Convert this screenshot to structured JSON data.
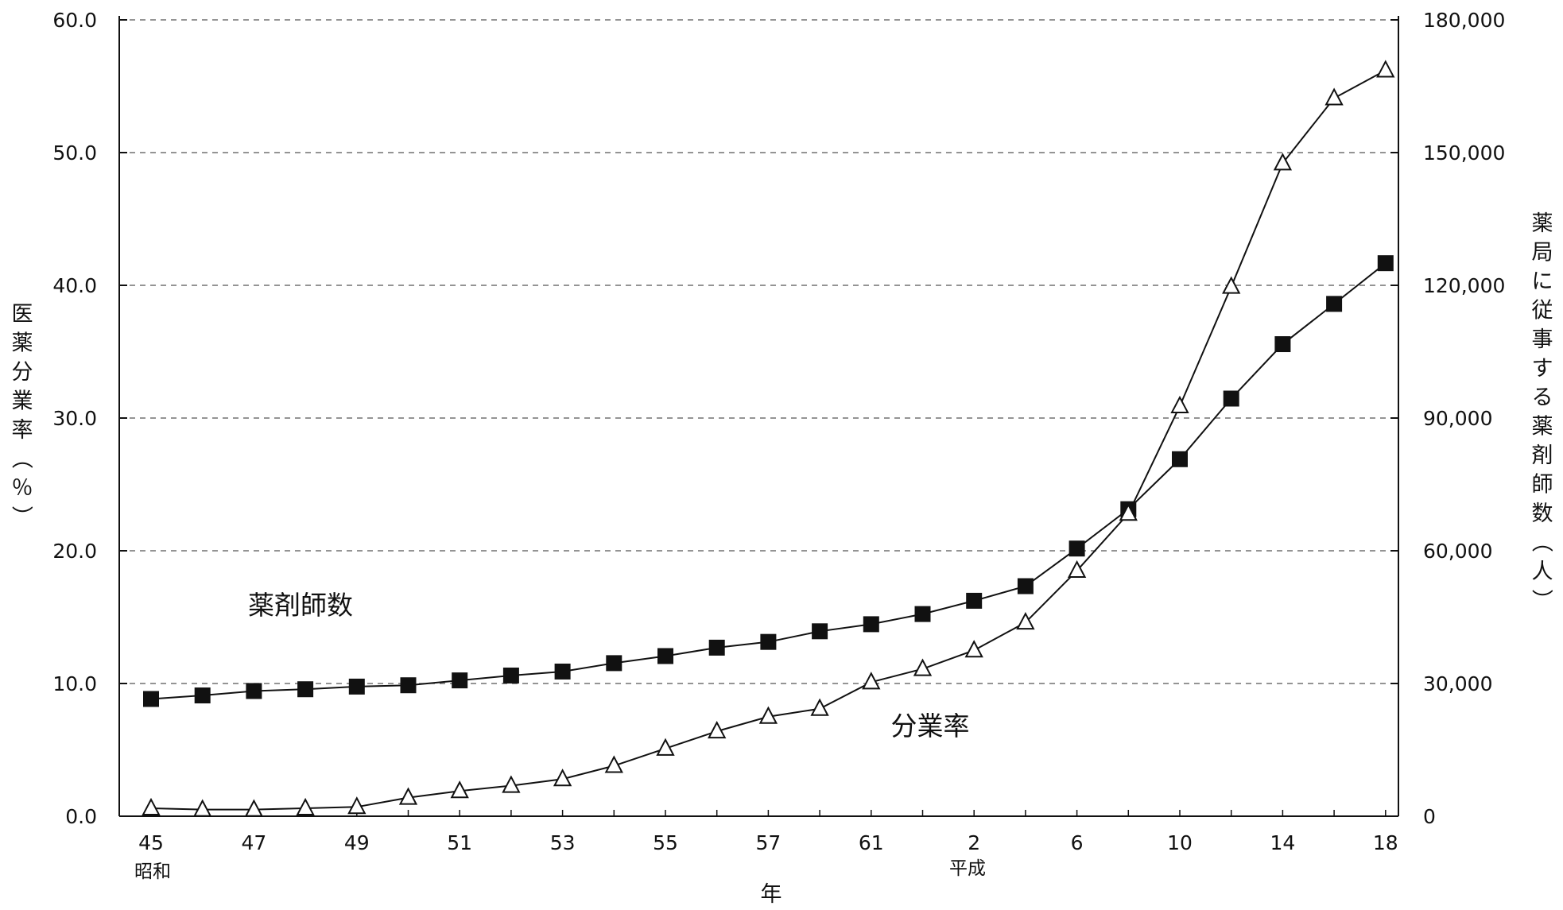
{
  "chart_data": {
    "type": "line",
    "xlabel": "年",
    "x_tick_labels": [
      "45",
      "47",
      "49",
      "51",
      "53",
      "55",
      "57",
      "61",
      "2",
      "6",
      "10",
      "14",
      "18"
    ],
    "era_labels": [
      "昭和",
      "平成"
    ],
    "left_axis": {
      "label": "医薬分業率（％）",
      "ylim": [
        0,
        60
      ],
      "ticks": [
        "0.0",
        "10.0",
        "20.0",
        "30.0",
        "40.0",
        "50.0",
        "60.0"
      ]
    },
    "right_axis": {
      "label": "薬局に従事する薬剤師数（人）",
      "ylim": [
        0,
        180000
      ],
      "ticks": [
        "0",
        "30,000",
        "60,000",
        "90,000",
        "120,000",
        "150,000",
        "180,000"
      ]
    },
    "grid": true,
    "series": [
      {
        "name": "薬剤師数",
        "axis": "right",
        "marker": "filled-square",
        "color": "#111111",
        "values": [
          26500,
          27300,
          28300,
          28700,
          29300,
          29600,
          30700,
          31800,
          32700,
          34600,
          36200,
          38100,
          39400,
          41800,
          43400,
          45700,
          48700,
          52000,
          60500,
          69400,
          80700,
          94400,
          106700,
          115800,
          125000
        ]
      },
      {
        "name": "分業率",
        "axis": "left",
        "marker": "open-triangle",
        "color": "#111111",
        "values": [
          0.6,
          0.5,
          0.5,
          0.6,
          0.7,
          1.4,
          1.9,
          2.3,
          2.8,
          3.8,
          5.1,
          6.4,
          7.5,
          8.1,
          10.1,
          11.1,
          12.5,
          14.6,
          18.5,
          22.8,
          30.9,
          39.9,
          49.2,
          54.1,
          56.2
        ]
      }
    ]
  }
}
